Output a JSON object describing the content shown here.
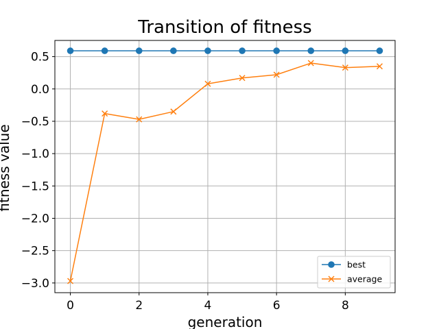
{
  "chart_data": {
    "type": "line",
    "title": "Transition of fitness",
    "xlabel": "generation",
    "ylabel": "fitness value",
    "x": [
      0,
      1,
      2,
      3,
      4,
      5,
      6,
      7,
      8,
      9
    ],
    "xlim": [
      -0.45,
      9.45
    ],
    "ylim": [
      -3.15,
      0.75
    ],
    "xticks": [
      0,
      2,
      4,
      6,
      8
    ],
    "yticks": [
      0.5,
      0.0,
      -0.5,
      -1.0,
      -1.5,
      -2.0,
      -2.5,
      -3.0
    ],
    "xtick_labels": [
      "0",
      "2",
      "4",
      "6",
      "8"
    ],
    "ytick_labels": [
      "0.5",
      "0.0",
      "−0.5",
      "−1.0",
      "−1.5",
      "−2.0",
      "−2.5",
      "−3.0"
    ],
    "grid": true,
    "legend_position": "lower-right",
    "series": [
      {
        "name": "best",
        "color": "#1f77b4",
        "marker": "circle",
        "values": [
          0.59,
          0.59,
          0.59,
          0.59,
          0.59,
          0.59,
          0.59,
          0.59,
          0.59,
          0.59
        ]
      },
      {
        "name": "average",
        "color": "#ff7f0e",
        "marker": "x",
        "values": [
          -2.97,
          -0.38,
          -0.47,
          -0.35,
          0.08,
          0.17,
          0.22,
          0.4,
          0.33,
          0.35
        ]
      }
    ]
  }
}
